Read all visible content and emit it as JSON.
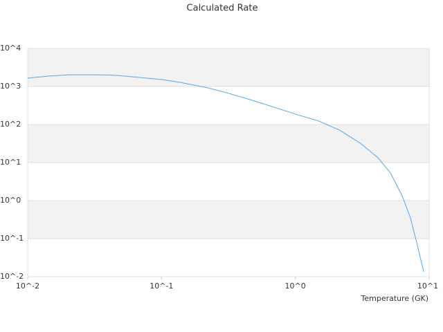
{
  "chart_data": {
    "type": "line",
    "title": "Calculated Rate",
    "x_label": "Temperature (GK)",
    "log_x": true,
    "log_y": true,
    "grid": true,
    "xlim": [
      0.01,
      10
    ],
    "ylim": [
      0.01,
      10000
    ],
    "xticks": [
      {
        "value": 0.01,
        "label": "10^-2"
      },
      {
        "value": 0.1,
        "label": "10^-1"
      },
      {
        "value": 1,
        "label": "10^0"
      },
      {
        "value": 10,
        "label": "10^1"
      }
    ],
    "yticks": [
      {
        "value": 0.01,
        "label": "10^-2"
      },
      {
        "value": 0.1,
        "label": "10^-1"
      },
      {
        "value": 1,
        "label": "10^0"
      },
      {
        "value": 10,
        "label": "10^1"
      },
      {
        "value": 100,
        "label": "10^2"
      },
      {
        "value": 1000,
        "label": "10^3"
      },
      {
        "value": 10000,
        "label": "10^4"
      }
    ],
    "x": [
      0.01,
      0.0143,
      0.0204,
      0.031,
      0.0417,
      0.0533,
      0.1,
      0.138,
      0.222,
      0.318,
      0.513,
      1,
      1.5,
      2.14,
      3.07,
      4.14,
      5.13,
      6.28,
      7.25,
      8.17,
      9.1
    ],
    "series": [
      {
        "color": "#5aa5e6",
        "values": [
          1650,
          1870,
          2030,
          2030,
          2000,
          1870,
          1520,
          1280,
          920,
          660,
          400,
          188,
          123,
          71,
          32,
          13.4,
          5.4,
          1.34,
          0.35,
          0.066,
          0.0135
        ]
      }
    ]
  }
}
